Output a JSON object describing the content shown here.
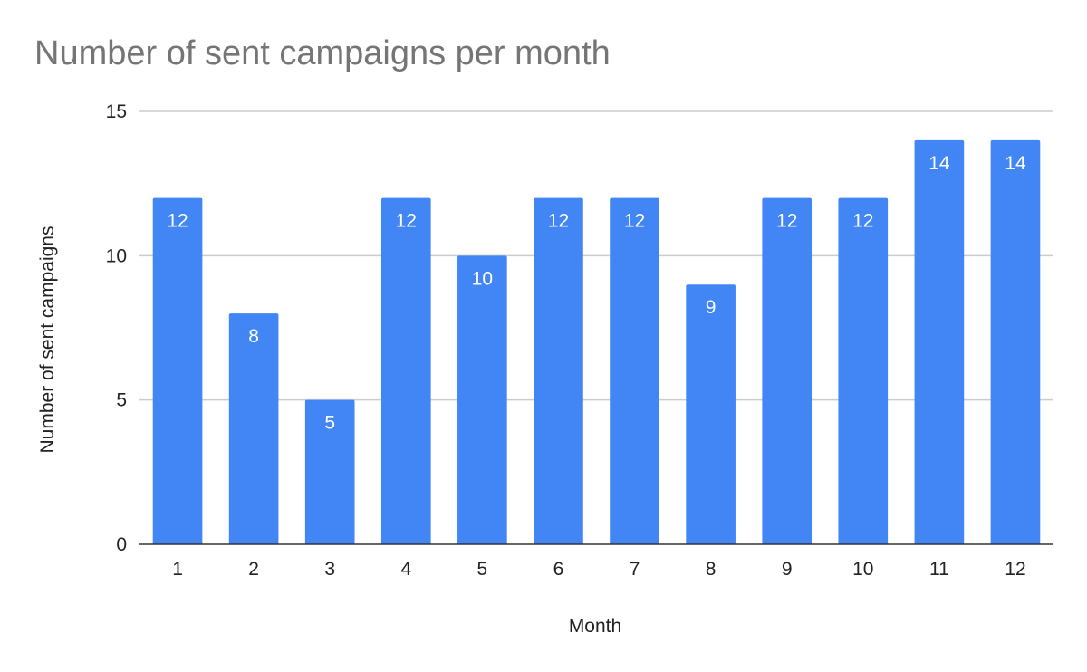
{
  "chart_data": {
    "type": "bar",
    "title": "Number of sent campaigns per month",
    "xlabel": "Month",
    "ylabel": "Number of sent campaigns",
    "categories": [
      "1",
      "2",
      "3",
      "4",
      "5",
      "6",
      "7",
      "8",
      "9",
      "10",
      "11",
      "12"
    ],
    "values": [
      12,
      8,
      5,
      12,
      10,
      12,
      12,
      9,
      12,
      12,
      14,
      14
    ],
    "ylim": [
      0,
      15
    ],
    "yticks": [
      0,
      5,
      10,
      15
    ],
    "grid": true,
    "legend": "none",
    "data_labels": true,
    "bar_color": "#4285f4",
    "gridline_color": "#cccccc",
    "axis_color": "#333333"
  }
}
